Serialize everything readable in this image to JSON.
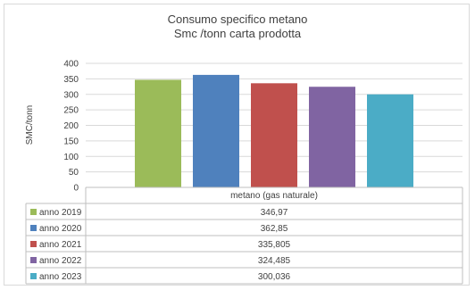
{
  "chart_data": {
    "type": "bar",
    "title": "Consumo specifico metano",
    "subtitle": "Smc /tonn carta prodotta",
    "ylabel": "SMC/tonn",
    "xlabel": "",
    "ylim": [
      0,
      400
    ],
    "yticks": [
      "0",
      "50",
      "100",
      "150",
      "200",
      "250",
      "300",
      "350",
      "400"
    ],
    "ytick_values": [
      0,
      50,
      100,
      150,
      200,
      250,
      300,
      350,
      400
    ],
    "categories": [
      "metano (gas naturale)"
    ],
    "grid": true,
    "legend": "data-table",
    "series": [
      {
        "name": "anno 2019",
        "values": [
          346.97
        ],
        "label": "346,97",
        "color": "#9bbb59"
      },
      {
        "name": "anno 2020",
        "values": [
          362.85
        ],
        "label": "362,85",
        "color": "#4f81bd"
      },
      {
        "name": "anno 2021",
        "values": [
          335.805
        ],
        "label": "335,805",
        "color": "#c0504d"
      },
      {
        "name": "anno 2022",
        "values": [
          324.485
        ],
        "label": "324,485",
        "color": "#8064a2"
      },
      {
        "name": "anno 2023",
        "values": [
          300.036
        ],
        "label": "300,036",
        "color": "#4bacc6"
      }
    ]
  }
}
